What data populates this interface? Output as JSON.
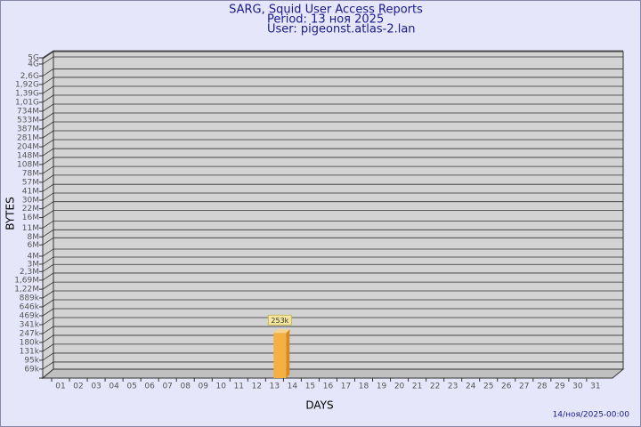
{
  "chart_data": {
    "type": "bar",
    "title": "SARG, Squid User Access Reports",
    "subtitle": "Period: 13 ноя 2025",
    "user": "User: pigeonst.atlas-2.lan",
    "x_label": "DAYS",
    "y_label": "BYTES",
    "footer": "14/ноя/2025-00:00",
    "log_scale": true,
    "grid": true,
    "color": "#f5b041",
    "categories": [
      "01",
      "02",
      "03",
      "04",
      "05",
      "06",
      "07",
      "08",
      "09",
      "10",
      "11",
      "12",
      "13",
      "14",
      "15",
      "16",
      "17",
      "18",
      "19",
      "20",
      "21",
      "22",
      "23",
      "24",
      "25",
      "26",
      "27",
      "28",
      "29",
      "30",
      "31"
    ],
    "values": [
      null,
      null,
      null,
      null,
      null,
      null,
      null,
      null,
      null,
      null,
      null,
      null,
      253000,
      null,
      null,
      null,
      null,
      null,
      null,
      null,
      null,
      null,
      null,
      null,
      null,
      null,
      null,
      null,
      null,
      null,
      null
    ],
    "value_labels": [
      null,
      null,
      null,
      null,
      null,
      null,
      null,
      null,
      null,
      null,
      null,
      null,
      "253k",
      null,
      null,
      null,
      null,
      null,
      null,
      null,
      null,
      null,
      null,
      null,
      null,
      null,
      null,
      null,
      null,
      null,
      null
    ],
    "ylim": [
      50000,
      5000000000
    ],
    "yticks": [
      {
        "value": 69000,
        "label": "69k"
      },
      {
        "value": 95000,
        "label": "95k"
      },
      {
        "value": 131000,
        "label": "131k"
      },
      {
        "value": 180000,
        "label": "180k"
      },
      {
        "value": 247000,
        "label": "247k"
      },
      {
        "value": 341000,
        "label": "341k"
      },
      {
        "value": 469000,
        "label": "469k"
      },
      {
        "value": 646000,
        "label": "646k"
      },
      {
        "value": 889000,
        "label": "889k"
      },
      {
        "value": 1220000,
        "label": "1,22M"
      },
      {
        "value": 1690000,
        "label": "1,69M"
      },
      {
        "value": 2300000,
        "label": "2,3M"
      },
      {
        "value": 3000000,
        "label": "3M"
      },
      {
        "value": 4000000,
        "label": "4M"
      },
      {
        "value": 6000000,
        "label": "6M"
      },
      {
        "value": 8000000,
        "label": "8M"
      },
      {
        "value": 11000000,
        "label": "11M"
      },
      {
        "value": 16000000,
        "label": "16M"
      },
      {
        "value": 22000000,
        "label": "22M"
      },
      {
        "value": 30000000,
        "label": "30M"
      },
      {
        "value": 41000000,
        "label": "41M"
      },
      {
        "value": 57000000,
        "label": "57M"
      },
      {
        "value": 78000000,
        "label": "78M"
      },
      {
        "value": 108000000,
        "label": "108M"
      },
      {
        "value": 148000000,
        "label": "148M"
      },
      {
        "value": 204000000,
        "label": "204M"
      },
      {
        "value": 281000000,
        "label": "281M"
      },
      {
        "value": 387000000,
        "label": "387M"
      },
      {
        "value": 533000000,
        "label": "533M"
      },
      {
        "value": 734000000,
        "label": "734M"
      },
      {
        "value": 1010000000,
        "label": "1,01G"
      },
      {
        "value": 1390000000,
        "label": "1,39G"
      },
      {
        "value": 1920000000,
        "label": "1,92G"
      },
      {
        "value": 2600000000,
        "label": "2,6G"
      },
      {
        "value": 4000000000,
        "label": "4G"
      },
      {
        "value": 5000000000,
        "label": "5G"
      }
    ]
  }
}
